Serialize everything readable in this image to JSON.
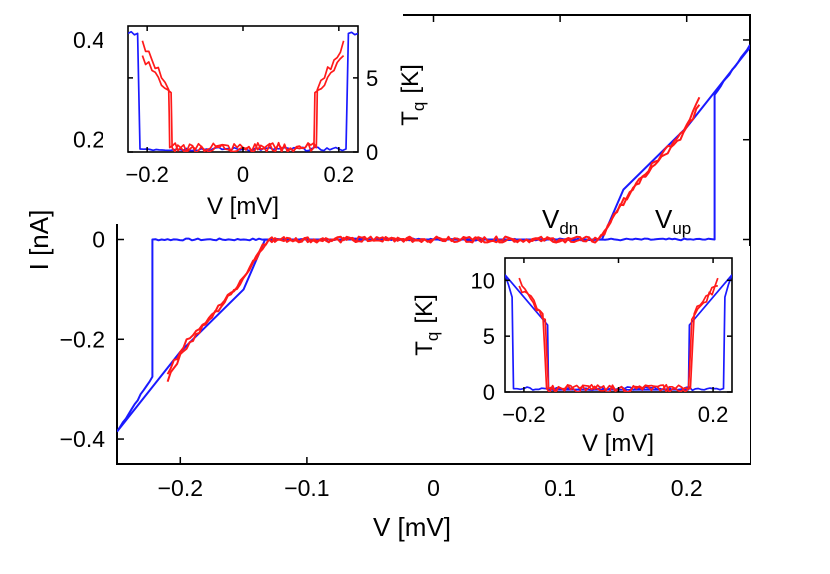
{
  "colors": {
    "blue": "#1a1aff",
    "red": "#ff1a1a",
    "axis": "#000000"
  },
  "chart_data": [
    {
      "type": "line",
      "title": "",
      "xlabel": "V  [mV]",
      "ylabel": "I  [nA]",
      "xlim": [
        -0.25,
        0.25
      ],
      "ylim": [
        -0.45,
        0.45
      ],
      "xticks": [
        -0.2,
        -0.1,
        0,
        0.1,
        0.2
      ],
      "xtick_labels": [
        "−0.2",
        "−0.1",
        "0",
        "0.1",
        "0.2"
      ],
      "yticks": [
        -0.4,
        -0.2,
        0,
        0.2,
        0.4
      ],
      "ytick_labels": [
        "−0.4",
        "−0.2",
        "0",
        "0.2",
        "0.4"
      ],
      "annotations": [
        {
          "text": "V",
          "sub": "dn",
          "x": 0.14,
          "y": 0.07
        },
        {
          "text": "V",
          "sub": "up",
          "x": 0.225,
          "y": 0.07
        }
      ],
      "series": [
        {
          "color": "blue",
          "x": [
            -0.25,
            -0.222,
            -0.222,
            -0.15,
            -0.133,
            0,
            0.133,
            0.15,
            0.222,
            0.222,
            0.25
          ],
          "y": [
            -0.385,
            -0.275,
            0.0,
            0.0,
            0.0,
            0.0,
            0.0,
            0.0,
            0.0,
            0.29,
            0.39
          ],
          "noise": 0.002
        },
        {
          "color": "blue",
          "x": [
            -0.25,
            -0.2,
            -0.15,
            -0.133,
            0,
            0.133,
            0.15,
            0.2,
            0.25
          ],
          "y": [
            -0.385,
            -0.225,
            -0.1,
            0.0,
            0.0,
            0.0,
            0.1,
            0.225,
            0.385
          ]
        },
        {
          "color": "red",
          "x": [
            -0.21,
            -0.2,
            -0.18,
            -0.16,
            -0.148,
            -0.135,
            -0.13,
            0,
            0.13,
            0.135,
            0.148,
            0.16,
            0.18,
            0.2,
            0.21
          ],
          "y": [
            -0.285,
            -0.23,
            -0.17,
            -0.11,
            -0.07,
            -0.01,
            0.0,
            0.0,
            0.0,
            0.01,
            0.07,
            0.11,
            0.17,
            0.23,
            0.285
          ],
          "noise": 0.006
        },
        {
          "color": "red",
          "x": [
            -0.21,
            -0.195,
            -0.175,
            -0.155,
            -0.145,
            -0.13,
            0,
            0.13,
            0.145,
            0.155,
            0.175,
            0.195,
            0.21
          ],
          "y": [
            -0.27,
            -0.2,
            -0.15,
            -0.095,
            -0.055,
            0.0,
            0.0,
            0.0,
            0.055,
            0.095,
            0.15,
            0.2,
            0.27
          ],
          "noise": 0.006
        }
      ]
    },
    {
      "type": "line",
      "title": "",
      "xlabel": "V  [mV]",
      "ylabel": "T",
      "ylabel_sub": "q",
      "ylabel_unit": "[K]",
      "xlim": [
        -0.24,
        0.24
      ],
      "ylim": [
        0,
        8.5
      ],
      "xticks": [
        -0.2,
        0,
        0.2
      ],
      "xtick_labels": [
        "−0.2",
        "0",
        "0.2"
      ],
      "yticks": [
        0,
        5
      ],
      "ytick_labels": [
        "0",
        "5"
      ],
      "series": [
        {
          "color": "blue",
          "x": [
            -0.24,
            -0.22,
            -0.215,
            -0.2,
            0,
            0.2,
            0.215,
            0.22,
            0.24
          ],
          "y": [
            8.0,
            8.0,
            0.2,
            0.2,
            0.2,
            0.2,
            0.2,
            8.0,
            8.0
          ],
          "noise": 0.12
        },
        {
          "color": "red",
          "x": [
            -0.21,
            -0.19,
            -0.17,
            -0.15,
            -0.148,
            -0.13,
            0,
            0.13,
            0.148,
            0.15,
            0.17,
            0.19,
            0.21
          ],
          "y": [
            6.5,
            5.5,
            4.5,
            4.0,
            0.3,
            0.3,
            0.3,
            0.3,
            0.3,
            4.0,
            4.5,
            5.5,
            6.5
          ],
          "noise": 0.35
        },
        {
          "color": "red",
          "x": [
            -0.21,
            -0.19,
            -0.17,
            -0.155,
            -0.153,
            -0.13,
            0,
            0.13,
            0.153,
            0.155,
            0.17,
            0.19,
            0.21
          ],
          "y": [
            7.5,
            6.2,
            5.0,
            4.2,
            0.3,
            0.3,
            0.3,
            0.3,
            0.3,
            4.2,
            5.0,
            6.2,
            7.5
          ],
          "noise": 0.35
        }
      ]
    },
    {
      "type": "line",
      "title": "",
      "xlabel": "V  [mV]",
      "ylabel": "T",
      "ylabel_sub": "q",
      "ylabel_unit": "[K]",
      "xlim": [
        -0.24,
        0.24
      ],
      "ylim": [
        0,
        12
      ],
      "xticks": [
        -0.2,
        0,
        0.2
      ],
      "xtick_labels": [
        "−0.2",
        "0",
        "0.2"
      ],
      "yticks": [
        0,
        5,
        10
      ],
      "ytick_labels": [
        "0",
        "5",
        "10"
      ],
      "series": [
        {
          "color": "blue",
          "x": [
            -0.24,
            -0.225,
            -0.222,
            -0.2,
            0,
            0.2,
            0.222,
            0.225,
            0.24
          ],
          "y": [
            10.5,
            8.5,
            0.3,
            0.3,
            0.3,
            0.3,
            0.3,
            8.5,
            10.5
          ],
          "noise": 0.15
        },
        {
          "color": "blue",
          "x": [
            -0.24,
            -0.2,
            -0.15,
            -0.148,
            -0.13,
            0,
            0.13,
            0.148,
            0.15,
            0.2,
            0.24
          ],
          "y": [
            10.5,
            8.5,
            6.0,
            0.2,
            0.2,
            0.2,
            0.2,
            0.2,
            6.0,
            8.5,
            10.5
          ]
        },
        {
          "color": "red",
          "x": [
            -0.21,
            -0.18,
            -0.155,
            -0.148,
            -0.12,
            0,
            0.12,
            0.148,
            0.155,
            0.18,
            0.21
          ],
          "y": [
            9.5,
            8.0,
            6.5,
            0.3,
            0.3,
            0.3,
            0.3,
            0.3,
            6.5,
            8.0,
            9.5
          ],
          "noise": 0.35
        },
        {
          "color": "red",
          "x": [
            -0.21,
            -0.185,
            -0.16,
            -0.152,
            -0.12,
            0,
            0.12,
            0.152,
            0.16,
            0.185,
            0.21
          ],
          "y": [
            10.2,
            8.6,
            7.0,
            0.3,
            0.3,
            0.3,
            0.3,
            0.3,
            7.0,
            8.6,
            10.2
          ],
          "noise": 0.35
        }
      ]
    }
  ]
}
